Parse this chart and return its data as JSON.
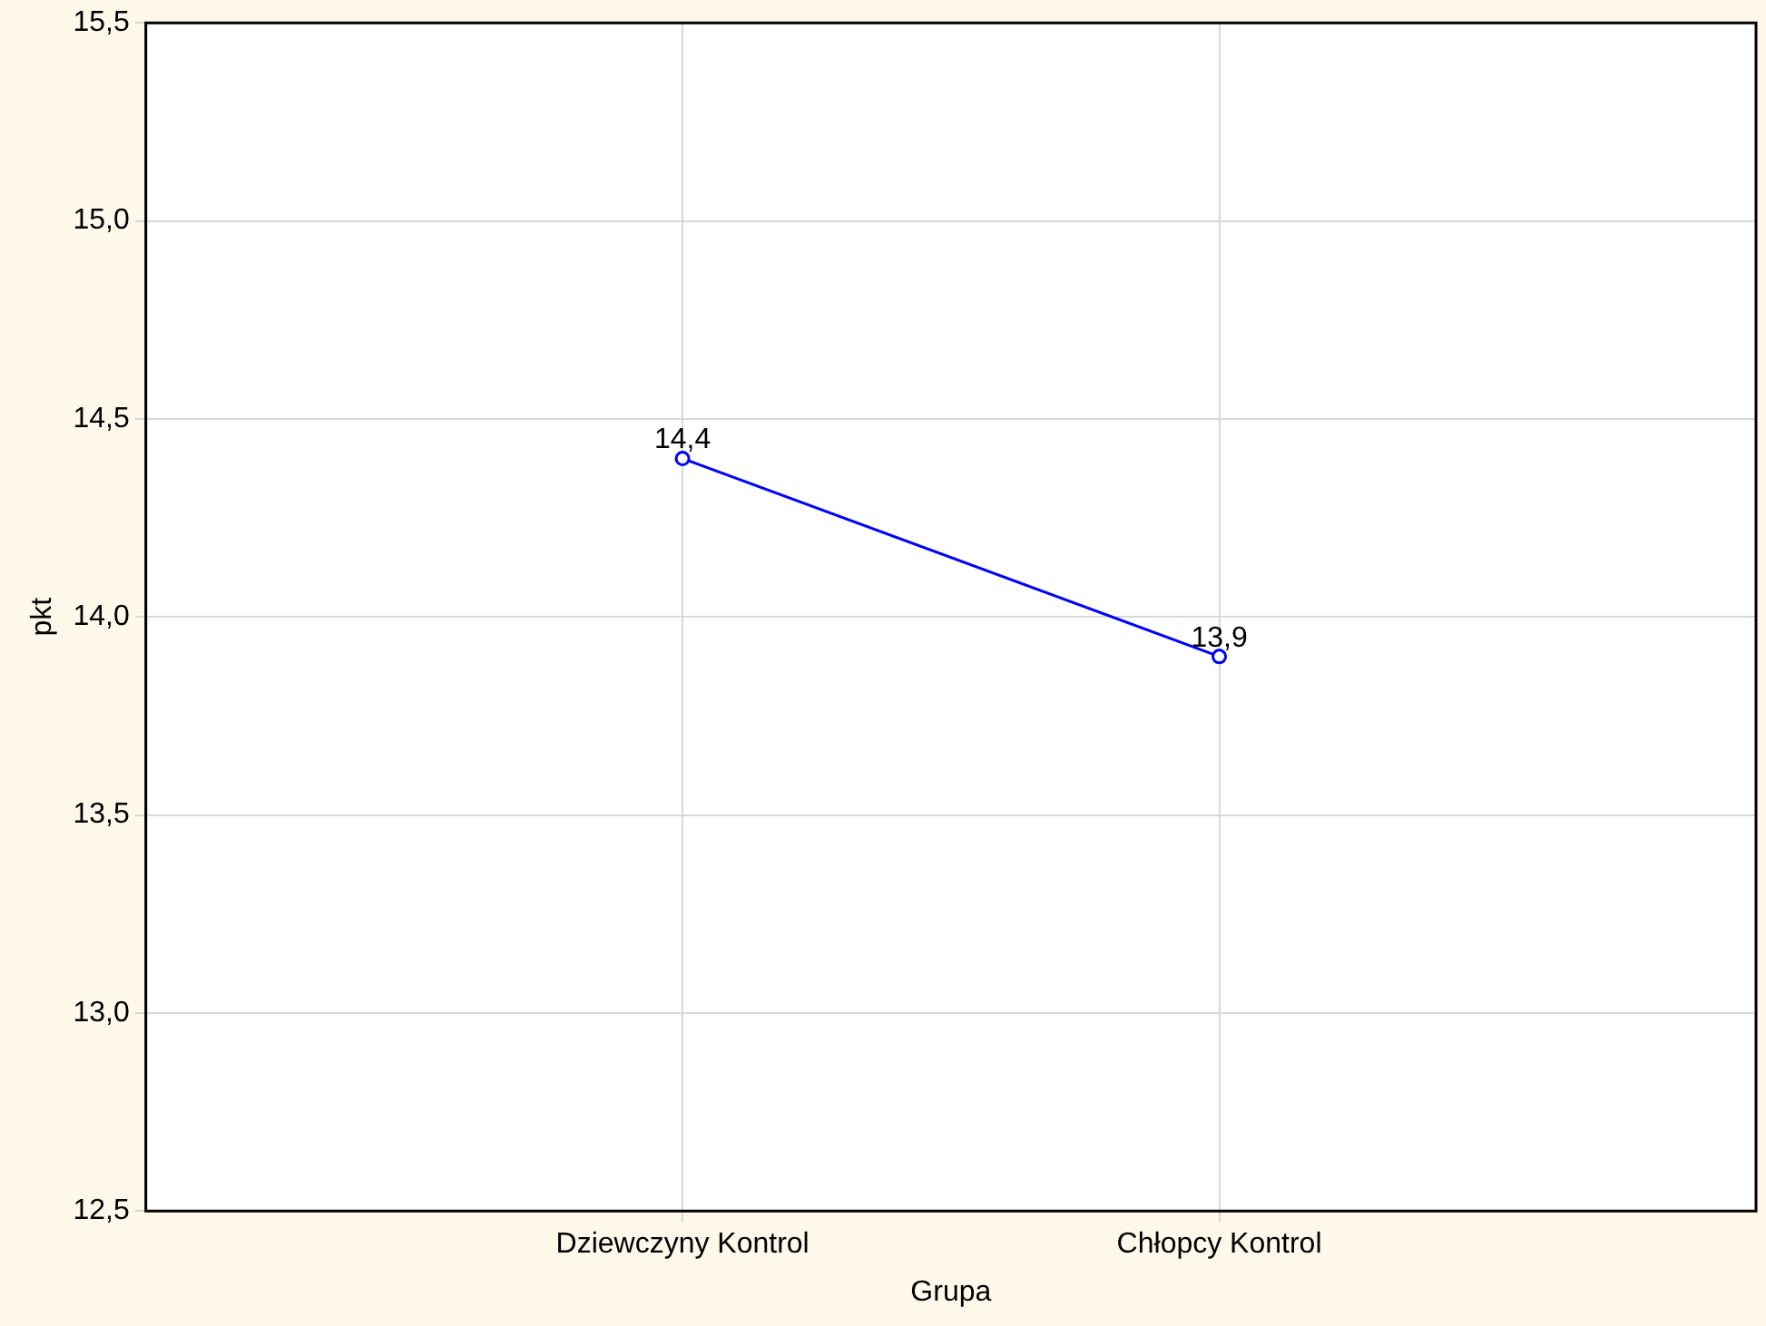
{
  "chart_data": {
    "type": "line",
    "xlabel": "Grupa",
    "ylabel": "pkt",
    "categories": [
      "Dziewczyny Kontrol",
      "Chłopcy Kontrol"
    ],
    "series": [
      {
        "color": "#0000ff",
        "values": [
          14.4,
          13.9
        ],
        "value_labels": [
          "14,4",
          "13,9"
        ]
      }
    ],
    "ylim": [
      12.5,
      15.5
    ],
    "yticks": [
      {
        "value": 12.5,
        "label": "12,5"
      },
      {
        "value": 13,
        "label": "13,0"
      },
      {
        "value": 13.5,
        "label": "13,5"
      },
      {
        "value": 14,
        "label": "14,0"
      },
      {
        "value": 14.5,
        "label": "14,5"
      },
      {
        "value": 15,
        "label": "15,0"
      },
      {
        "value": 15.5,
        "label": "15,5"
      }
    ],
    "grid": true,
    "marker": "circle",
    "legend": false
  }
}
